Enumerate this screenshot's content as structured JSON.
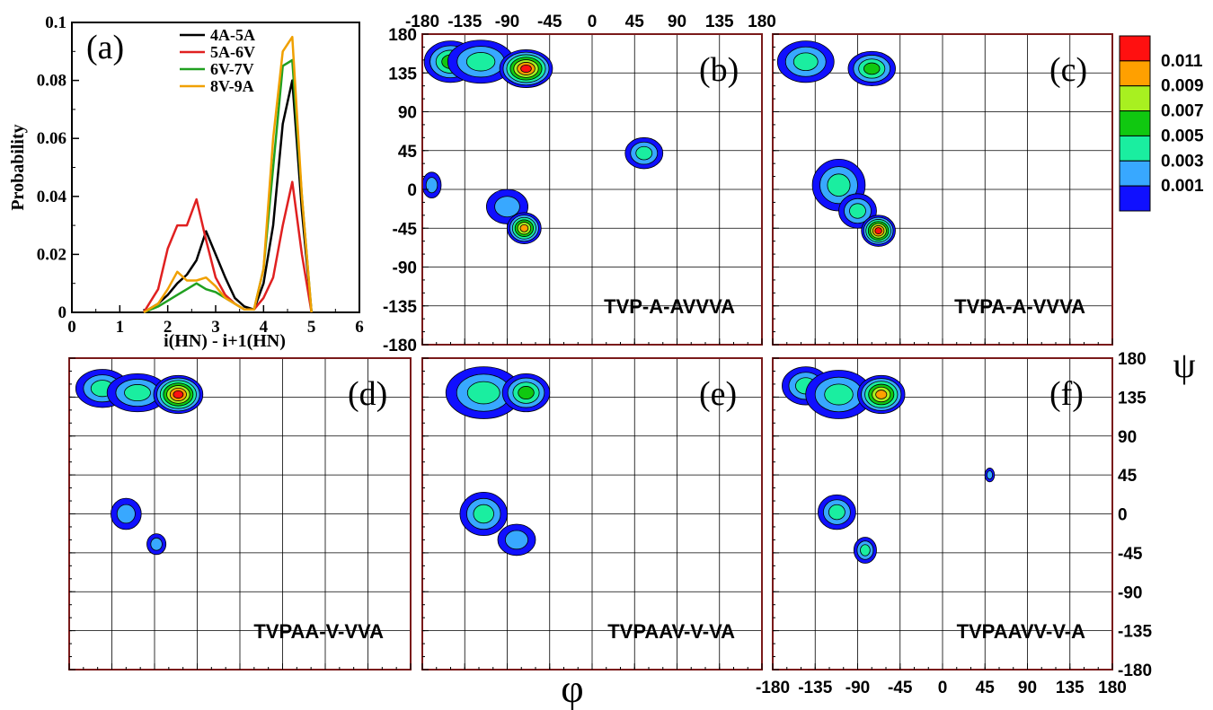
{
  "colors": {
    "frame": "#7a1a1a",
    "grid": "#000000",
    "levels": [
      "#1010ff",
      "#38a8ff",
      "#1aeea0",
      "#10c810",
      "#a8f020",
      "#ffa000",
      "#ff1010"
    ]
  },
  "chart_data": [
    {
      "id": "a",
      "type": "line",
      "panel_label": "(a)",
      "xlabel": "i(HN) - i+1(HN)",
      "ylabel": "Probability",
      "xlim": [
        0,
        6
      ],
      "ylim": [
        0,
        0.1
      ],
      "xticks": [
        "0",
        "1",
        "2",
        "3",
        "4",
        "5",
        "6"
      ],
      "yticks": [
        "0",
        "0.02",
        "0.04",
        "0.06",
        "0.08",
        "0.1"
      ],
      "legend_position": "top-right",
      "series": [
        {
          "name": "4A-5A",
          "color": "#000000",
          "x": [
            1.5,
            1.8,
            2.0,
            2.2,
            2.4,
            2.6,
            2.8,
            3.0,
            3.2,
            3.4,
            3.6,
            3.8,
            4.0,
            4.2,
            4.4,
            4.6,
            4.8,
            5.0
          ],
          "y": [
            0,
            0.003,
            0.006,
            0.01,
            0.013,
            0.018,
            0.028,
            0.02,
            0.012,
            0.005,
            0.002,
            0.001,
            0.01,
            0.03,
            0.065,
            0.08,
            0.035,
            0
          ]
        },
        {
          "name": "5A-6V",
          "color": "#e02020",
          "x": [
            1.5,
            1.8,
            2.0,
            2.2,
            2.4,
            2.6,
            2.8,
            3.0,
            3.2,
            3.4,
            3.6,
            3.8,
            4.0,
            4.2,
            4.4,
            4.6,
            4.8,
            5.0
          ],
          "y": [
            0,
            0.008,
            0.022,
            0.03,
            0.03,
            0.039,
            0.025,
            0.012,
            0.006,
            0.003,
            0.001,
            0.001,
            0.005,
            0.012,
            0.03,
            0.045,
            0.02,
            0
          ]
        },
        {
          "name": "6V-7V",
          "color": "#20a020",
          "x": [
            1.5,
            1.8,
            2.0,
            2.2,
            2.4,
            2.6,
            2.8,
            3.0,
            3.2,
            3.4,
            3.6,
            3.8,
            4.0,
            4.2,
            4.4,
            4.6,
            4.8,
            5.0
          ],
          "y": [
            0,
            0.002,
            0.004,
            0.006,
            0.008,
            0.01,
            0.008,
            0.007,
            0.005,
            0.003,
            0.001,
            0.001,
            0.015,
            0.05,
            0.085,
            0.087,
            0.04,
            0
          ]
        },
        {
          "name": "8V-9A",
          "color": "#f0a000",
          "x": [
            1.5,
            1.8,
            2.0,
            2.2,
            2.4,
            2.6,
            2.8,
            3.0,
            3.2,
            3.4,
            3.6,
            3.8,
            4.0,
            4.2,
            4.4,
            4.6,
            4.8,
            5.0
          ],
          "y": [
            0,
            0.003,
            0.008,
            0.014,
            0.011,
            0.011,
            0.012,
            0.009,
            0.005,
            0.003,
            0.001,
            0.001,
            0.015,
            0.06,
            0.09,
            0.095,
            0.04,
            0
          ]
        }
      ]
    },
    {
      "id": "b",
      "type": "heatmap",
      "panel_label": "(b)",
      "sequence": "TVP-A-AVVVA",
      "show_top_axis": true,
      "show_right_axis": false,
      "show_left_axis": true,
      "show_bottom_axis": false,
      "blobs": [
        {
          "phi": -150,
          "psi": 148,
          "rx": 28,
          "ry": 24,
          "peak": 4
        },
        {
          "phi": -118,
          "psi": 148,
          "rx": 35,
          "ry": 25,
          "peak": 3
        },
        {
          "phi": -70,
          "psi": 140,
          "rx": 28,
          "ry": 22,
          "peak": 7
        },
        {
          "phi": 55,
          "psi": 42,
          "rx": 20,
          "ry": 18,
          "peak": 3
        },
        {
          "phi": -170,
          "psi": 5,
          "rx": 10,
          "ry": 15,
          "peak": 2
        },
        {
          "phi": -90,
          "psi": -20,
          "rx": 22,
          "ry": 20,
          "peak": 2
        },
        {
          "phi": -72,
          "psi": -45,
          "rx": 18,
          "ry": 18,
          "peak": 6
        }
      ]
    },
    {
      "id": "c",
      "type": "heatmap",
      "panel_label": "(c)",
      "sequence": "TVPA-A-VVVA",
      "show_top_axis": false,
      "show_right_axis": false,
      "show_left_axis": false,
      "show_bottom_axis": false,
      "blobs": [
        {
          "phi": -145,
          "psi": 148,
          "rx": 30,
          "ry": 24,
          "peak": 3
        },
        {
          "phi": -75,
          "psi": 140,
          "rx": 25,
          "ry": 20,
          "peak": 4
        },
        {
          "phi": -110,
          "psi": 5,
          "rx": 28,
          "ry": 30,
          "peak": 3
        },
        {
          "phi": -90,
          "psi": -25,
          "rx": 20,
          "ry": 20,
          "peak": 3
        },
        {
          "phi": -68,
          "psi": -48,
          "rx": 18,
          "ry": 18,
          "peak": 7
        }
      ]
    },
    {
      "id": "d",
      "type": "heatmap",
      "panel_label": "(d)",
      "sequence": "TVPAA-V-VVA",
      "show_top_axis": false,
      "show_right_axis": false,
      "show_left_axis": false,
      "show_bottom_axis": false,
      "blobs": [
        {
          "phi": -145,
          "psi": 145,
          "rx": 28,
          "ry": 22,
          "peak": 3
        },
        {
          "phi": -108,
          "psi": 140,
          "rx": 32,
          "ry": 22,
          "peak": 3
        },
        {
          "phi": -65,
          "psi": 138,
          "rx": 26,
          "ry": 22,
          "peak": 7
        },
        {
          "phi": -120,
          "psi": 0,
          "rx": 16,
          "ry": 18,
          "peak": 2
        },
        {
          "phi": -88,
          "psi": -35,
          "rx": 10,
          "ry": 12,
          "peak": 2
        }
      ]
    },
    {
      "id": "e",
      "type": "heatmap",
      "panel_label": "(e)",
      "sequence": "TVPAAV-V-VA",
      "show_top_axis": false,
      "show_right_axis": false,
      "show_left_axis": false,
      "show_bottom_axis": false,
      "blobs": [
        {
          "phi": -115,
          "psi": 140,
          "rx": 40,
          "ry": 30,
          "peak": 3
        },
        {
          "phi": -70,
          "psi": 140,
          "rx": 25,
          "ry": 22,
          "peak": 4
        },
        {
          "phi": -115,
          "psi": 0,
          "rx": 25,
          "ry": 25,
          "peak": 3
        },
        {
          "phi": -80,
          "psi": -30,
          "rx": 20,
          "ry": 18,
          "peak": 2
        }
      ]
    },
    {
      "id": "f",
      "type": "heatmap",
      "panel_label": "(f)",
      "sequence": "TVPAAVV-V-A",
      "show_top_axis": false,
      "show_right_axis": true,
      "show_left_axis": false,
      "show_bottom_axis": true,
      "blobs": [
        {
          "phi": -145,
          "psi": 148,
          "rx": 25,
          "ry": 22,
          "peak": 3
        },
        {
          "phi": -110,
          "psi": 138,
          "rx": 35,
          "ry": 28,
          "peak": 3
        },
        {
          "phi": -65,
          "psi": 138,
          "rx": 25,
          "ry": 22,
          "peak": 6
        },
        {
          "phi": -112,
          "psi": 2,
          "rx": 20,
          "ry": 20,
          "peak": 3
        },
        {
          "phi": -82,
          "psi": -42,
          "rx": 12,
          "ry": 15,
          "peak": 3
        },
        {
          "phi": 50,
          "psi": 45,
          "rx": 5,
          "ry": 8,
          "peak": 2
        }
      ]
    }
  ],
  "heatmap_axes": {
    "xlim": [
      -180,
      180
    ],
    "ylim": [
      -180,
      180
    ],
    "ticks": [
      "-180",
      "-135",
      "-90",
      "-45",
      "0",
      "45",
      "90",
      "135",
      "180"
    ],
    "xlabel": "φ",
    "ylabel": "ψ"
  },
  "colorbar": {
    "labels": [
      "0.011",
      "0.009",
      "0.007",
      "0.005",
      "0.003",
      "0.001"
    ]
  }
}
